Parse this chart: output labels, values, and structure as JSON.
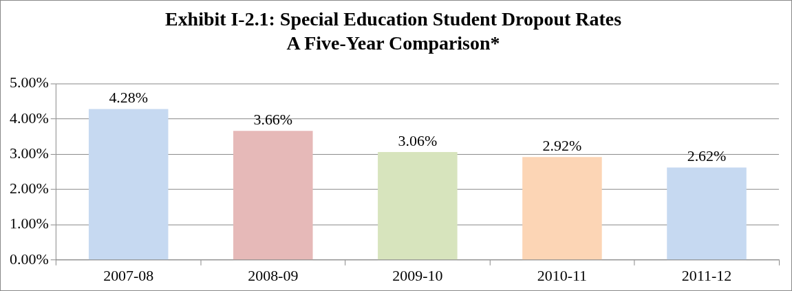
{
  "chart_data": {
    "type": "bar",
    "title": "Exhibit I-2.1: Special Education Student Dropout Rates",
    "subtitle": "A Five-Year Comparison*",
    "categories": [
      "2007-08",
      "2008-09",
      "2009-10",
      "2010-11",
      "2011-12"
    ],
    "values": [
      4.28,
      3.66,
      3.06,
      2.92,
      2.62
    ],
    "colors": [
      "#c6d9f1",
      "#e6b9b8",
      "#d7e4bd",
      "#fcd5b5",
      "#c6d9f1"
    ],
    "value_labels": [
      "4.28%",
      "3.66%",
      "3.06%",
      "2.92%",
      "2.62%"
    ],
    "ylim": [
      0,
      5
    ],
    "yticks": [
      {
        "value": 0,
        "label": "0.00%"
      },
      {
        "value": 1,
        "label": "1.00%"
      },
      {
        "value": 2,
        "label": "2.00%"
      },
      {
        "value": 3,
        "label": "3.00%"
      },
      {
        "value": 4,
        "label": "4.00%"
      },
      {
        "value": 5,
        "label": "5.00%"
      }
    ],
    "grid": "y",
    "legend": false
  }
}
